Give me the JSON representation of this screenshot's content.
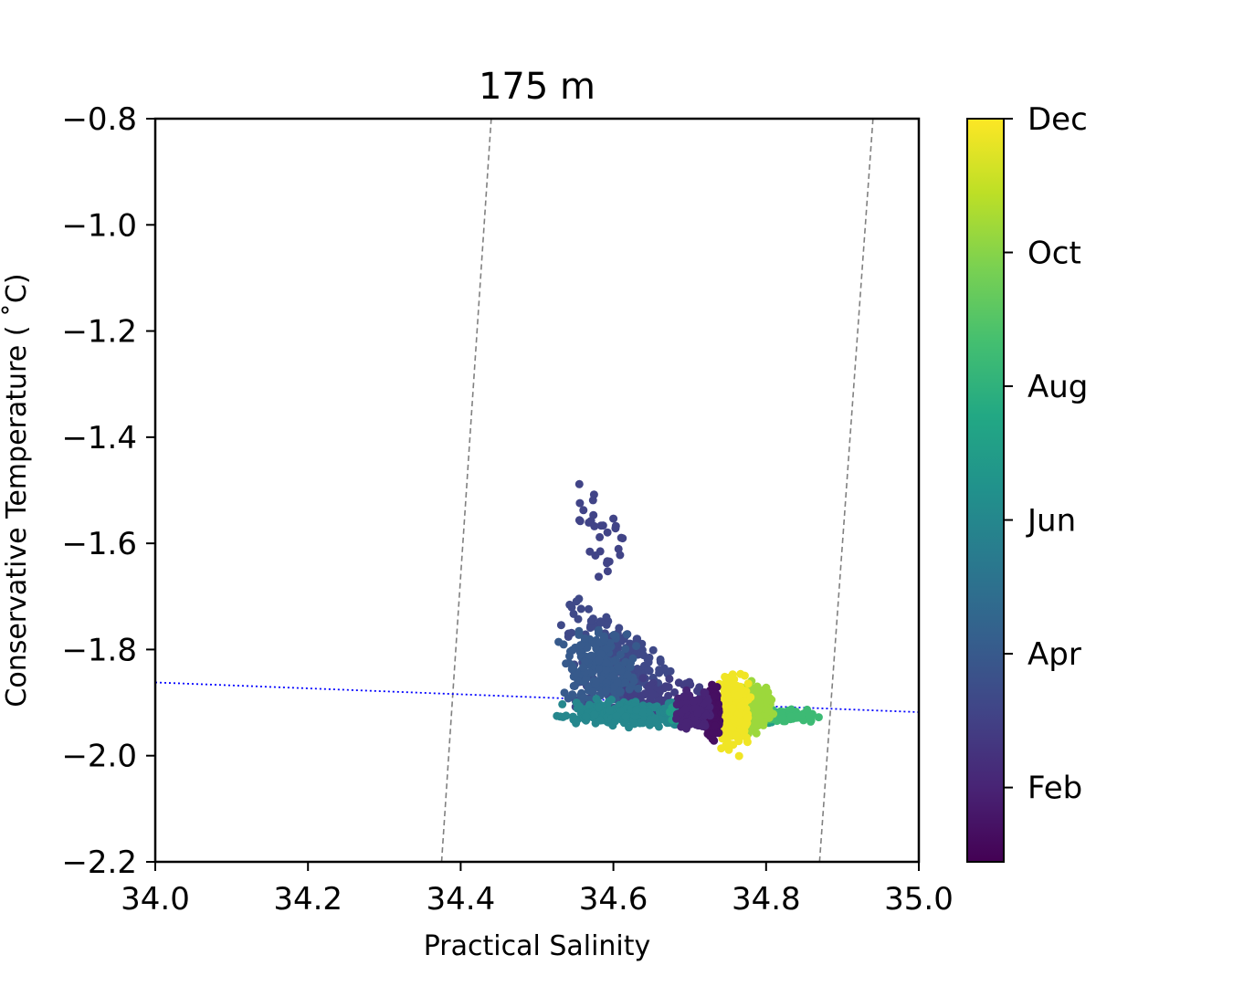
{
  "chart_data": {
    "type": "scatter",
    "title": "175 m",
    "xlabel": "Practical Salinity",
    "ylabel": "Conservative Temperature ($^\\circ$C)",
    "ylabel_display": "Conservative Temperature ( ˚C)",
    "xlim": [
      34.0,
      35.0
    ],
    "ylim": [
      -2.2,
      -0.8
    ],
    "xticks": [
      34.0,
      34.2,
      34.4,
      34.6,
      34.8,
      35.0
    ],
    "xtick_labels": [
      "34.0",
      "34.2",
      "34.4",
      "34.6",
      "34.8",
      "35.0"
    ],
    "yticks": [
      -0.8,
      -1.0,
      -1.2,
      -1.4,
      -1.6,
      -1.8,
      -2.0,
      -2.2
    ],
    "ytick_labels": [
      "−0.8",
      "−1.0",
      "−1.2",
      "−1.4",
      "−1.6",
      "−1.8",
      "−2.0",
      "−2.2"
    ],
    "grid": false,
    "colorbar": {
      "colormap": "viridis",
      "ticks": [
        "Feb",
        "Apr",
        "Jun",
        "Aug",
        "Oct",
        "Dec"
      ],
      "tick_fractions": [
        0.1,
        0.28,
        0.46,
        0.64,
        0.82,
        1.0
      ]
    },
    "reference_lines": [
      {
        "style": "dashed",
        "color": "#808080",
        "points": [
          [
            34.375,
            -2.2
          ],
          [
            34.44,
            -0.8
          ]
        ]
      },
      {
        "style": "dashed",
        "color": "#808080",
        "points": [
          [
            34.87,
            -2.2
          ],
          [
            34.94,
            -0.8
          ]
        ]
      },
      {
        "style": "dotted",
        "color": "#0000ff",
        "points": [
          [
            34.0,
            -1.862
          ],
          [
            35.0,
            -1.918
          ]
        ]
      }
    ],
    "clusters": [
      {
        "month_fraction": 0.22,
        "count": 260,
        "s": [
          34.53,
          34.68
        ],
        "t": [
          -1.92,
          -1.68
        ],
        "note": "spread high"
      },
      {
        "month_fraction": 0.2,
        "count": 30,
        "s": [
          34.54,
          34.62
        ],
        "t": [
          -1.7,
          -1.45
        ]
      },
      {
        "month_fraction": 0.18,
        "count": 120,
        "s": [
          34.6,
          34.73
        ],
        "t": [
          -1.96,
          -1.84
        ]
      },
      {
        "month_fraction": 0.28,
        "count": 200,
        "s": [
          34.52,
          34.64
        ],
        "t": [
          -1.94,
          -1.74
        ]
      },
      {
        "month_fraction": 0.46,
        "count": 250,
        "s": [
          34.52,
          34.72
        ],
        "t": [
          -1.95,
          -1.89
        ]
      },
      {
        "month_fraction": 0.55,
        "count": 150,
        "s": [
          34.66,
          34.82
        ],
        "t": [
          -1.95,
          -1.9
        ]
      },
      {
        "month_fraction": 0.68,
        "count": 150,
        "s": [
          34.77,
          34.87
        ],
        "t": [
          -1.94,
          -1.91
        ]
      },
      {
        "month_fraction": 0.85,
        "count": 220,
        "s": [
          34.76,
          34.81
        ],
        "t": [
          -1.97,
          -1.85
        ]
      },
      {
        "month_fraction": 0.98,
        "count": 260,
        "s": [
          34.735,
          34.78
        ],
        "t": [
          -2.01,
          -1.83
        ]
      },
      {
        "month_fraction": 0.04,
        "count": 280,
        "s": [
          34.72,
          34.74
        ],
        "t": [
          -1.98,
          -1.86
        ]
      },
      {
        "month_fraction": 0.1,
        "count": 180,
        "s": [
          34.68,
          34.73
        ],
        "t": [
          -1.96,
          -1.87
        ]
      }
    ]
  }
}
